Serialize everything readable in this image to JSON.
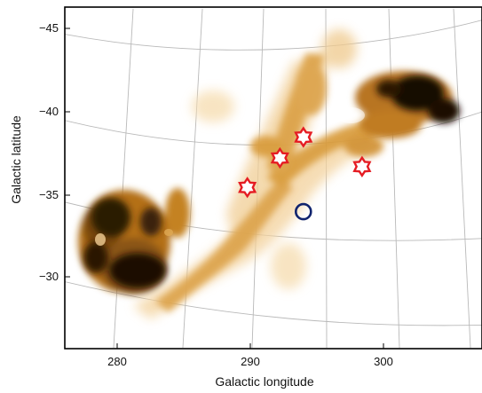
{
  "chart_data": {
    "type": "map",
    "xlabel": "Galactic longitude",
    "ylabel": "Galactic latitude",
    "x_ticks": [
      "280",
      "290",
      "300"
    ],
    "y_ticks": [
      "−45",
      "−40",
      "−35",
      "−30"
    ],
    "xlim": [
      275.5,
      307.5
    ],
    "ylim": [
      -26.8,
      -46.5
    ],
    "grid": "curved graticule",
    "emission_colormap": [
      "#f6dcae",
      "#d89a37",
      "#b06e14",
      "#3a2208",
      "#000000"
    ],
    "star_markers": [
      {
        "l": 289.5,
        "b": -36.1
      },
      {
        "l": 292.0,
        "b": -37.8
      },
      {
        "l": 293.8,
        "b": -39.0
      },
      {
        "l": 298.3,
        "b": -37.3
      }
    ],
    "circle_markers": [
      {
        "l": 293.8,
        "b": -34.7
      }
    ],
    "star_color": "#e51c23",
    "circle_color": "#10246e"
  }
}
